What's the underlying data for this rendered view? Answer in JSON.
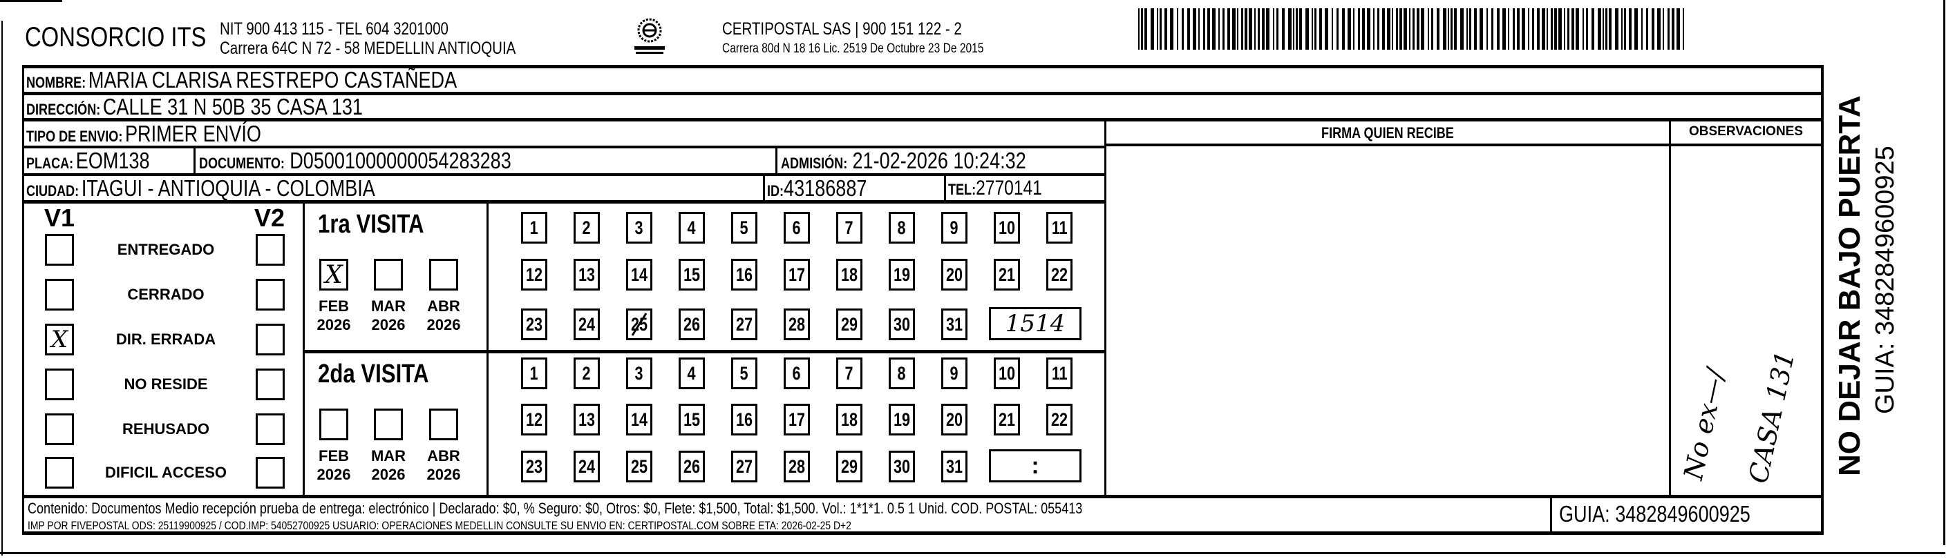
{
  "header": {
    "sender_name": "CONSORCIO ITS",
    "sender_nit": "NIT 900 413 115 - TEL 604 3201000",
    "sender_address": "Carrera 64C N 72 - 58 MEDELLIN ANTIOQUIA",
    "logo_text": "CERTIPOSTAL",
    "carrier_name": "CERTIPOSTAL SAS | 900 151 122 - 2",
    "carrier_address": "Carrera 80d N 18 16  Lic. 2519 De Octubre 23 De 2015",
    "barcode_icon": "barcode"
  },
  "recipient": {
    "nombre_label": "NOMBRE:",
    "nombre": "MARIA CLARISA RESTREPO CASTAÑEDA",
    "direccion_label": "DIRECCIÓN:",
    "direccion": "CALLE 31 N 50B 35 CASA 131",
    "tipo_label": "TIPO DE ENVIO:",
    "tipo": "PRIMER ENVÍO",
    "placa_label": "PLACA:",
    "placa": "EOM138",
    "documento_label": "DOCUMENTO:",
    "documento": "D05001000000054283283",
    "admision_label": "ADMISIÓN:",
    "admision": "21-02-2026 10:24:32",
    "ciudad_label": "CIUDAD:",
    "ciudad": "ITAGUI - ANTIOQUIA - COLOMBIA",
    "id_label": "ID:",
    "id": "43186887",
    "tel_label": "TEL:",
    "tel": "2770141"
  },
  "signature": {
    "firma_label": "FIRMA QUIEN RECIBE",
    "observaciones_label": "OBSERVACIONES",
    "observaciones_handwritten_1": "No ex—/",
    "observaciones_handwritten_2": "CASA 131"
  },
  "status": {
    "v1_label": "V1",
    "v2_label": "V2",
    "options": [
      {
        "label": "ENTREGADO",
        "v1": "",
        "v2": ""
      },
      {
        "label": "CERRADO",
        "v1": "",
        "v2": ""
      },
      {
        "label": "DIR. ERRADA",
        "v1": "X",
        "v2": ""
      },
      {
        "label": "NO RESIDE",
        "v1": "",
        "v2": ""
      },
      {
        "label": "REHUSADO",
        "v1": "",
        "v2": ""
      },
      {
        "label": "DIFICIL ACCESO",
        "v1": "",
        "v2": ""
      }
    ]
  },
  "visits": [
    {
      "title": "1ra VISITA",
      "months": [
        {
          "m": "FEB",
          "y": "2026",
          "mark": "X"
        },
        {
          "m": "MAR",
          "y": "2026",
          "mark": ""
        },
        {
          "m": "ABR",
          "y": "2026",
          "mark": ""
        }
      ],
      "marked_day": 25,
      "time": "1514"
    },
    {
      "title": "2da VISITA",
      "months": [
        {
          "m": "FEB",
          "y": "2026",
          "mark": ""
        },
        {
          "m": "MAR",
          "y": "2026",
          "mark": ""
        },
        {
          "m": "ABR",
          "y": "2026",
          "mark": ""
        }
      ],
      "marked_day": null,
      "time": ":"
    }
  ],
  "days": [
    1,
    2,
    3,
    4,
    5,
    6,
    7,
    8,
    9,
    10,
    11,
    12,
    13,
    14,
    15,
    16,
    17,
    18,
    19,
    20,
    21,
    22,
    23,
    24,
    25,
    26,
    27,
    28,
    29,
    30,
    31
  ],
  "footer": {
    "line1": "Contenido: Documentos Medio recepción prueba de entrega: electrónico | Declarado: $0, % Seguro: $0, Otros: $0, Flete: $1,500, Total: $1,500. Vol.: 1*1*1. 0.5  1 Unid. COD. POSTAL: 055413",
    "line2": "IMP POR FIVEPOSTAL ODS: 25119900925 / COD.IMP: 54052700925 USUARIO: OPERACIONES MEDELLIN CONSULTE SU ENVIO EN: CERTIPOSTAL.COM SOBRE ETA: 2026-02-25 D+2",
    "guia": "GUIA: 3482849600925"
  },
  "side": {
    "warning": "NO DEJAR BAJO PUERTA",
    "guia": "GUIA: 3482849600925"
  }
}
